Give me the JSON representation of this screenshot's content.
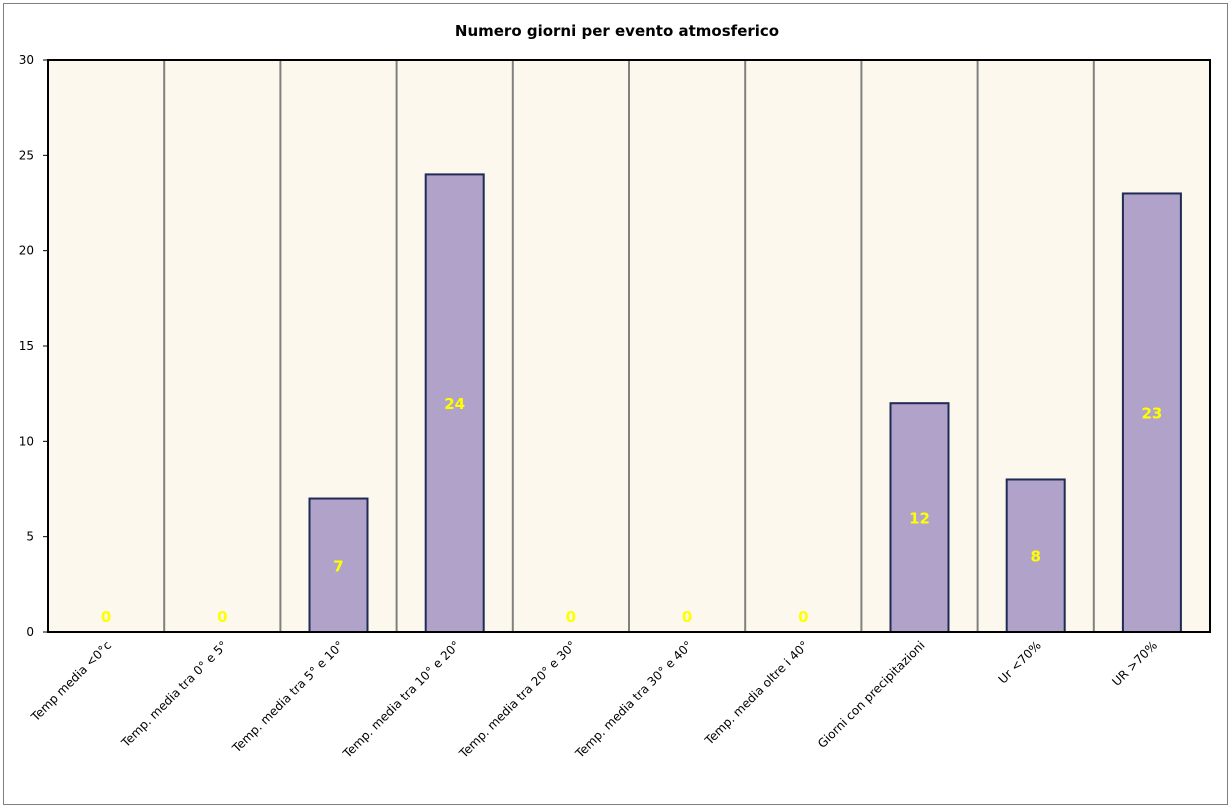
{
  "chart_data": {
    "type": "bar",
    "title": "Numero giorni  per evento atmosferico",
    "categories": [
      "Temp media <0°c",
      "Temp. media tra 0° e 5°",
      "Temp. media tra 5° e 10°",
      "Temp. media tra 10° e 20°",
      "Temp. media tra 20° e 30°",
      "Temp. media tra 30° e 40°",
      "Temp. media oltre i 40°",
      "Giorni con precipitazioni",
      "Ur  <70%",
      "UR >70%"
    ],
    "values": [
      0,
      0,
      7,
      24,
      0,
      0,
      0,
      12,
      8,
      23
    ],
    "data_labels": [
      "0",
      "0",
      "7",
      "24",
      "0",
      "0",
      "0",
      "12",
      "8",
      "23"
    ],
    "yticks": [
      "0",
      "5",
      "10",
      "15",
      "20",
      "25",
      "30"
    ],
    "ylim": [
      0,
      30
    ],
    "xlabel": "",
    "ylabel": "",
    "grid": "vertical lines between categories",
    "legend": "none",
    "colors": {
      "bar_fill": "#b0a2c8",
      "bar_stroke": "#1f2a55",
      "plot_bg": "#fcf8ee",
      "gridline": "#808080",
      "data_label": "#ffff00"
    }
  }
}
